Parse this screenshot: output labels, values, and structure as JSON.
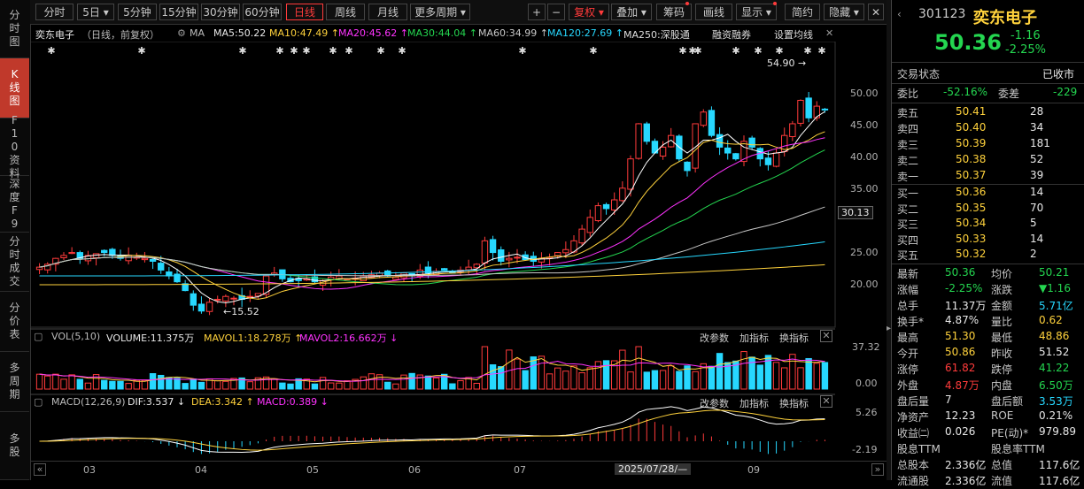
{
  "left_tabs": [
    {
      "label": "分时图"
    },
    {
      "label": "K线图"
    },
    {
      "label": "F10资料"
    },
    {
      "label": "深度F9"
    },
    {
      "label": "分时成交"
    },
    {
      "label": "分价表"
    },
    {
      "label": "多周期"
    },
    {
      "label": "多股"
    }
  ],
  "toolbar": {
    "periods": [
      "分时",
      "5日",
      "5分钟",
      "15分钟",
      "30分钟",
      "60分钟",
      "日线",
      "周线",
      "月线",
      "更多周期"
    ],
    "active_period": "日线",
    "plus": "+",
    "minus": "−",
    "fuquan": "复权",
    "diejia": "叠加",
    "chouma": "筹码",
    "huaxian": "画线",
    "xianshi": "显示",
    "jianyue": "简约",
    "yincang": "隐藏"
  },
  "ma_row": {
    "stock": "奕东电子",
    "mode": "（日线，前复权）",
    "ma": "MA",
    "ma5": "MA5:50.22",
    "ma10": "MA10:47.49",
    "ma20": "MA20:45.62",
    "ma30": "MA30:44.04",
    "ma60": "MA60:34.99",
    "ma120": "MA120:27.69",
    "ma250": "MA250:深股通",
    "rzrq": "融资融券",
    "setting": "设置均线"
  },
  "price_axis": [
    "50.00",
    "45.00",
    "40.00",
    "35.00",
    "30.13",
    "25.00",
    "20.00"
  ],
  "annotations": {
    "high": "54.90",
    "low": "15.52"
  },
  "x_axis": [
    "03",
    "04",
    "05",
    "06",
    "07",
    "09"
  ],
  "cursor_date": "2025/07/28/—",
  "volume": {
    "title": "VOL(5,10)",
    "volume": "VOLUME:11.375万",
    "mavol1": "MAVOL1:18.278万",
    "mavol2": "MAVOL2:16.662万",
    "axis": [
      "37.32",
      "0.00"
    ],
    "gaicanshu": "改参数",
    "zengjia": "加指标",
    "huan": "换指标"
  },
  "macd": {
    "title": "MACD(12,26,9)",
    "dif": "DIF:3.537",
    "dea": "DEA:3.342",
    "macd": "MACD:0.389",
    "axis": [
      "5.26",
      "-2.19"
    ],
    "gaicanshu": "改参数",
    "zengjia": "加指标",
    "huan": "换指标"
  },
  "colors": {
    "up": "#ff3b3b",
    "down": "#27d8ff",
    "ma5": "#ffffff",
    "ma10": "#ffd23c",
    "ma20": "#ff33ff",
    "ma30": "#24d650",
    "ma60": "#c8c8c8",
    "ma120": "#27d8ff",
    "ma250": "#ffd23c"
  },
  "chart_data": {
    "type": "candlestick",
    "ylim": [
      14,
      56
    ],
    "price_path": [
      23.5,
      24,
      25,
      25.5,
      26,
      25,
      25.5,
      25.8,
      26,
      25.5,
      25,
      25.5,
      25.2,
      25,
      24.5,
      23,
      22,
      21,
      19.5,
      17,
      16,
      17.5,
      18,
      18.5,
      18.2,
      18,
      18.5,
      19,
      22,
      22.5,
      21.5,
      21,
      21.2,
      21.5,
      21,
      21.2,
      21.8,
      22,
      21.5,
      21.6,
      22,
      22.2,
      22.5,
      22,
      21.8,
      22.5,
      22,
      23,
      22.5,
      22.8,
      23,
      22.5,
      23,
      23.5,
      24,
      28,
      26,
      24.5,
      25,
      25.2,
      24.8,
      24.5,
      25,
      25.2,
      26,
      26.5,
      28,
      30,
      32,
      34,
      33.5,
      35,
      37,
      42,
      48,
      45,
      43,
      44,
      46,
      42,
      40,
      48,
      50,
      46,
      44,
      43,
      42,
      45,
      44,
      42,
      41,
      43,
      46,
      48,
      52,
      49,
      51,
      50.4
    ]
  },
  "quote": {
    "code": "301123",
    "name": "奕东电子",
    "price": "50.36",
    "change": "-1.16",
    "pct": "-2.25%",
    "status_label": "交易状态",
    "status": "已收市",
    "weibi_l": "委比",
    "weibi": "-52.16%",
    "weicha_l": "委差",
    "weicha": "-229",
    "asks": [
      {
        "l": "卖五",
        "p": "50.41",
        "v": "28"
      },
      {
        "l": "卖四",
        "p": "50.40",
        "v": "34"
      },
      {
        "l": "卖三",
        "p": "50.39",
        "v": "181"
      },
      {
        "l": "卖二",
        "p": "50.38",
        "v": "52"
      },
      {
        "l": "卖一",
        "p": "50.37",
        "v": "39"
      }
    ],
    "bids": [
      {
        "l": "买一",
        "p": "50.36",
        "v": "14"
      },
      {
        "l": "买二",
        "p": "50.35",
        "v": "70"
      },
      {
        "l": "买三",
        "p": "50.34",
        "v": "5"
      },
      {
        "l": "买四",
        "p": "50.33",
        "v": "14"
      },
      {
        "l": "买五",
        "p": "50.32",
        "v": "2"
      }
    ],
    "stats": [
      {
        "l1": "最新",
        "v1": "50.36",
        "c1": "grn",
        "l2": "均价",
        "v2": "50.21",
        "c2": "grn"
      },
      {
        "l1": "涨幅",
        "v1": "-2.25%",
        "c1": "grn",
        "l2": "涨跌",
        "v2": "▼1.16",
        "c2": "grn"
      },
      {
        "l1": "总手",
        "v1": "11.37万",
        "c1": "wht",
        "l2": "金额",
        "v2": "5.71亿",
        "c2": "cyn"
      },
      {
        "l1": "换手*",
        "v1": "4.87%",
        "c1": "wht",
        "l2": "量比",
        "v2": "0.62",
        "c2": "yel"
      },
      {
        "l1": "最高",
        "v1": "51.30",
        "c1": "yel",
        "l2": "最低",
        "v2": "48.86",
        "c2": "yel"
      },
      {
        "l1": "今开",
        "v1": "50.86",
        "c1": "yel",
        "l2": "昨收",
        "v2": "51.52",
        "c2": "wht"
      },
      {
        "l1": "涨停",
        "v1": "61.82",
        "c1": "red",
        "l2": "跌停",
        "v2": "41.22",
        "c2": "grn"
      },
      {
        "l1": "外盘",
        "v1": "4.87万",
        "c1": "red",
        "l2": "内盘",
        "v2": "6.50万",
        "c2": "grn"
      },
      {
        "l1": "盘后量",
        "v1": "7",
        "c1": "wht",
        "l2": "盘后额",
        "v2": "3.53万",
        "c2": "cyn"
      },
      {
        "l1": "净资产",
        "v1": "12.23",
        "c1": "wht",
        "l2": "ROE",
        "v2": "0.21%",
        "c2": "wht"
      },
      {
        "l1": "收益㈡",
        "v1": "0.026",
        "c1": "wht",
        "l2": "PE(动)*",
        "v2": "979.89",
        "c2": "wht"
      },
      {
        "l1": "股息TTM",
        "v1": "",
        "c1": "wht",
        "l2": "股息率TTM",
        "v2": "",
        "c2": "wht"
      },
      {
        "l1": "总股本",
        "v1": "2.336亿",
        "c1": "wht",
        "l2": "总值",
        "v2": "117.6亿",
        "c2": "wht"
      },
      {
        "l1": "流通股",
        "v1": "2.336亿",
        "c1": "wht",
        "l2": "流值",
        "v2": "117.6亿",
        "c2": "wht"
      }
    ]
  }
}
